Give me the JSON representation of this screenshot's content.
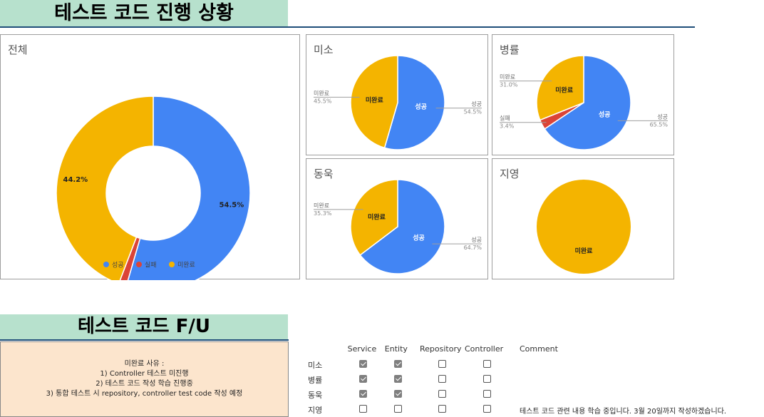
{
  "header": {
    "title": "테스트 코드 진행 상황"
  },
  "colors": {
    "success": "#4285f4",
    "fail": "#db4437",
    "incomplete": "#f4b400"
  },
  "chart_data": [
    {
      "type": "pie",
      "donut": true,
      "title": "전체",
      "series": [
        {
          "name": "성공",
          "value": 54.5
        },
        {
          "name": "실패",
          "value": 1.3
        },
        {
          "name": "미완료",
          "value": 44.2
        }
      ],
      "data_labels": [
        "54.5%",
        "",
        "44.2%"
      ],
      "legend": [
        "성공",
        "실패",
        "미완료"
      ],
      "legend_placement": "bottom"
    },
    {
      "type": "pie",
      "title": "미소",
      "series": [
        {
          "name": "성공",
          "value": 54.5
        },
        {
          "name": "미완료",
          "value": 45.5
        }
      ],
      "outer_labels": [
        {
          "name": "성공",
          "pct": "54.5%"
        },
        {
          "name": "미완료",
          "pct": "45.5%"
        }
      ]
    },
    {
      "type": "pie",
      "title": "병률",
      "series": [
        {
          "name": "성공",
          "value": 65.5
        },
        {
          "name": "실패",
          "value": 3.4
        },
        {
          "name": "미완료",
          "value": 31.0
        }
      ],
      "outer_labels": [
        {
          "name": "성공",
          "pct": "65.5%"
        },
        {
          "name": "실패",
          "pct": "3.4%"
        },
        {
          "name": "미완료",
          "pct": "31.0%"
        }
      ]
    },
    {
      "type": "pie",
      "title": "동욱",
      "series": [
        {
          "name": "성공",
          "value": 64.7
        },
        {
          "name": "미완료",
          "value": 35.3
        }
      ],
      "outer_labels": [
        {
          "name": "성공",
          "pct": "64.7%"
        },
        {
          "name": "미완료",
          "pct": "35.3%"
        }
      ]
    },
    {
      "type": "pie",
      "title": "지영",
      "series": [
        {
          "name": "미완료",
          "value": 100
        }
      ],
      "outer_labels": []
    }
  ],
  "followup": {
    "title": "테스트 코드 F/U",
    "reason_lines": [
      "미완료 사유 :",
      "1) Controller 테스트 미진행",
      "2) 테스트 코드 작성 학습 진행중",
      "3) 통합 테스트 시 repository, controller test code 작성 예정"
    ],
    "columns": [
      "Service",
      "Entity",
      "Repository",
      "Controller",
      "Comment"
    ],
    "rows": [
      {
        "name": "미소",
        "checks": [
          true,
          true,
          false,
          false
        ],
        "comment": ""
      },
      {
        "name": "병률",
        "checks": [
          true,
          true,
          false,
          false
        ],
        "comment": ""
      },
      {
        "name": "동욱",
        "checks": [
          true,
          true,
          false,
          false
        ],
        "comment": ""
      },
      {
        "name": "지영",
        "checks": [
          false,
          false,
          false,
          false
        ],
        "comment": "테스트 코드 관련 내용 학습 중입니다. 3월 20일까지 작성하겠습니다."
      }
    ]
  }
}
